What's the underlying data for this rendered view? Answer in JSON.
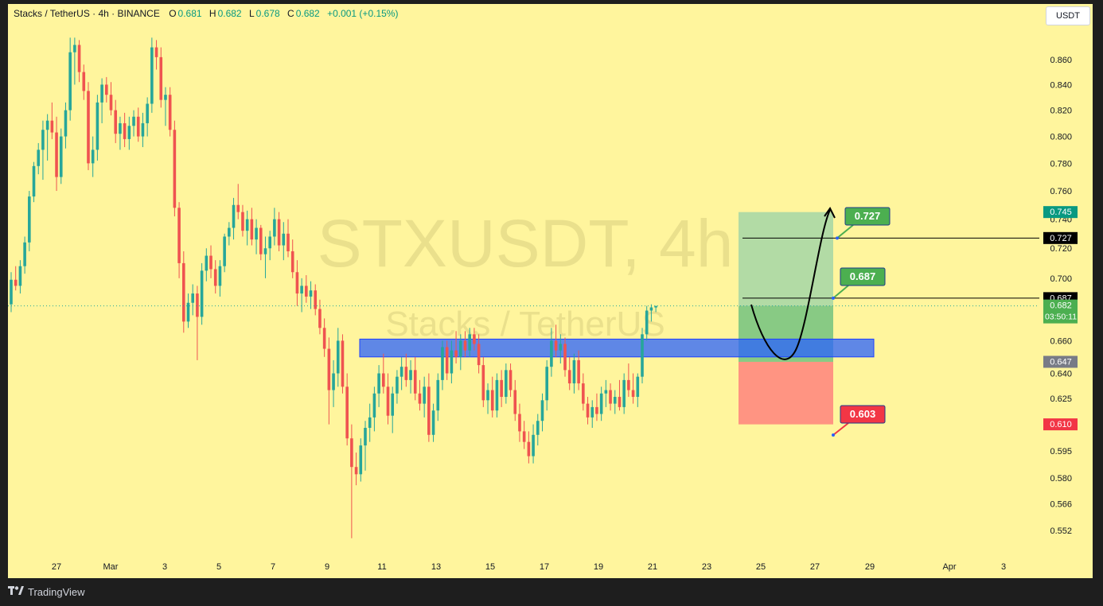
{
  "legend": {
    "symbol": "Stacks / TetherUS · 4h · BINANCE",
    "o_label": "O",
    "o": "0.681",
    "h_label": "H",
    "h": "0.682",
    "l_label": "L",
    "l": "0.678",
    "c_label": "C",
    "c": "0.682",
    "change": "+0.001 (+0.15%)"
  },
  "currency": "USDT",
  "watermark": {
    "main": "STXUSDT, 4h",
    "sub": "Stacks / TetherUS"
  },
  "footer": {
    "brand": "TradingView",
    "logo_icon": "tradingview-logo-icon"
  },
  "colors": {
    "bg": "#fff59d",
    "up": "#26a69a",
    "down": "#ef5350",
    "zone": "#2962ff",
    "target": "#4caf50",
    "stop": "#f23645",
    "profit_fill": "#a5d6a7",
    "loss_fill": "#ff8a80"
  },
  "chart_data": {
    "type": "candlestick",
    "title": "Stacks / TetherUS · 4h · BINANCE",
    "y_ticks": [
      "0.860",
      "0.840",
      "0.820",
      "0.800",
      "0.780",
      "0.760",
      "0.740",
      "0.720",
      "0.700",
      "0.660",
      "0.640",
      "0.625",
      "0.595",
      "0.580",
      "0.566",
      "0.552"
    ],
    "x_ticks": [
      "27",
      "Mar",
      "3",
      "5",
      "7",
      "9",
      "11",
      "13",
      "15",
      "17",
      "19",
      "21",
      "23",
      "25",
      "27",
      "29",
      "Apr",
      "3"
    ],
    "ylim": [
      0.546,
      0.88
    ],
    "y_scale": "log",
    "price_labels": [
      {
        "value": "0.745",
        "color": "#089981"
      },
      {
        "value": "0.727",
        "color": "#000000"
      },
      {
        "value": "0.687",
        "color": "#000000"
      },
      {
        "value": "0.682",
        "sub": "03:50:11",
        "color": "#4caf50"
      },
      {
        "value": "0.647",
        "color": "#787b86"
      },
      {
        "value": "0.610",
        "color": "#f23645"
      }
    ],
    "callouts": [
      {
        "text": "0.727",
        "color": "#4caf50"
      },
      {
        "text": "0.687",
        "color": "#4caf50"
      },
      {
        "text": "0.603",
        "color": "#f23645"
      }
    ],
    "support_zone": {
      "low": 0.65,
      "high": 0.661
    },
    "long_position": {
      "entry": 0.647,
      "target": 0.745,
      "stop": 0.61
    },
    "horizontal_lines": [
      0.727,
      0.687
    ],
    "last_price": 0.682,
    "candles": [
      [
        0.683,
        0.704,
        0.678,
        0.699
      ],
      [
        0.699,
        0.708,
        0.692,
        0.695
      ],
      [
        0.695,
        0.712,
        0.69,
        0.708
      ],
      [
        0.708,
        0.728,
        0.703,
        0.724
      ],
      [
        0.724,
        0.76,
        0.718,
        0.756
      ],
      [
        0.756,
        0.781,
        0.752,
        0.778
      ],
      [
        0.778,
        0.795,
        0.772,
        0.79
      ],
      [
        0.79,
        0.812,
        0.768,
        0.805
      ],
      [
        0.805,
        0.817,
        0.782,
        0.812
      ],
      [
        0.812,
        0.826,
        0.798,
        0.803
      ],
      [
        0.803,
        0.815,
        0.76,
        0.77
      ],
      [
        0.77,
        0.806,
        0.765,
        0.8
      ],
      [
        0.8,
        0.826,
        0.791,
        0.82
      ],
      [
        0.82,
        0.878,
        0.812,
        0.866
      ],
      [
        0.866,
        0.878,
        0.84,
        0.872
      ],
      [
        0.872,
        0.876,
        0.842,
        0.85
      ],
      [
        0.85,
        0.856,
        0.828,
        0.835
      ],
      [
        0.835,
        0.842,
        0.775,
        0.78
      ],
      [
        0.78,
        0.8,
        0.77,
        0.79
      ],
      [
        0.79,
        0.832,
        0.782,
        0.826
      ],
      [
        0.826,
        0.845,
        0.81,
        0.84
      ],
      [
        0.84,
        0.846,
        0.826,
        0.832
      ],
      [
        0.832,
        0.842,
        0.816,
        0.82
      ],
      [
        0.82,
        0.828,
        0.795,
        0.802
      ],
      [
        0.802,
        0.815,
        0.79,
        0.81
      ],
      [
        0.81,
        0.818,
        0.792,
        0.798
      ],
      [
        0.798,
        0.815,
        0.79,
        0.808
      ],
      [
        0.808,
        0.82,
        0.8,
        0.815
      ],
      [
        0.815,
        0.822,
        0.796,
        0.8
      ],
      [
        0.8,
        0.818,
        0.792,
        0.81
      ],
      [
        0.81,
        0.83,
        0.8,
        0.825
      ],
      [
        0.825,
        0.878,
        0.818,
        0.87
      ],
      [
        0.87,
        0.876,
        0.852,
        0.862
      ],
      [
        0.862,
        0.87,
        0.822,
        0.828
      ],
      [
        0.828,
        0.838,
        0.808,
        0.832
      ],
      [
        0.832,
        0.838,
        0.8,
        0.805
      ],
      [
        0.805,
        0.812,
        0.742,
        0.748
      ],
      [
        0.748,
        0.752,
        0.7,
        0.71
      ],
      [
        0.71,
        0.718,
        0.665,
        0.672
      ],
      [
        0.672,
        0.69,
        0.668,
        0.684
      ],
      [
        0.684,
        0.696,
        0.676,
        0.69
      ],
      [
        0.69,
        0.695,
        0.648,
        0.675
      ],
      [
        0.675,
        0.71,
        0.67,
        0.705
      ],
      [
        0.705,
        0.72,
        0.698,
        0.715
      ],
      [
        0.715,
        0.722,
        0.7,
        0.706
      ],
      [
        0.706,
        0.712,
        0.69,
        0.695
      ],
      [
        0.695,
        0.712,
        0.688,
        0.708
      ],
      [
        0.708,
        0.73,
        0.704,
        0.728
      ],
      [
        0.728,
        0.738,
        0.722,
        0.734
      ],
      [
        0.734,
        0.755,
        0.726,
        0.75
      ],
      [
        0.75,
        0.765,
        0.74,
        0.745
      ],
      [
        0.745,
        0.75,
        0.728,
        0.732
      ],
      [
        0.732,
        0.746,
        0.722,
        0.74
      ],
      [
        0.74,
        0.748,
        0.722,
        0.726
      ],
      [
        0.726,
        0.74,
        0.716,
        0.734
      ],
      [
        0.734,
        0.736,
        0.712,
        0.716
      ],
      [
        0.716,
        0.728,
        0.7,
        0.72
      ],
      [
        0.72,
        0.732,
        0.712,
        0.728
      ],
      [
        0.728,
        0.748,
        0.722,
        0.74
      ],
      [
        0.74,
        0.745,
        0.718,
        0.722
      ],
      [
        0.722,
        0.738,
        0.712,
        0.73
      ],
      [
        0.73,
        0.74,
        0.714,
        0.718
      ],
      [
        0.718,
        0.726,
        0.7,
        0.704
      ],
      [
        0.704,
        0.712,
        0.682,
        0.69
      ],
      [
        0.69,
        0.7,
        0.678,
        0.695
      ],
      [
        0.695,
        0.702,
        0.684,
        0.688
      ],
      [
        0.688,
        0.698,
        0.68,
        0.692
      ],
      [
        0.692,
        0.696,
        0.676,
        0.68
      ],
      [
        0.68,
        0.686,
        0.664,
        0.668
      ],
      [
        0.668,
        0.674,
        0.65,
        0.655
      ],
      [
        0.655,
        0.662,
        0.61,
        0.63
      ],
      [
        0.63,
        0.648,
        0.62,
        0.64
      ],
      [
        0.64,
        0.668,
        0.632,
        0.66
      ],
      [
        0.66,
        0.664,
        0.628,
        0.632
      ],
      [
        0.632,
        0.64,
        0.598,
        0.602
      ],
      [
        0.602,
        0.61,
        0.548,
        0.586
      ],
      [
        0.586,
        0.594,
        0.576,
        0.582
      ],
      [
        0.582,
        0.602,
        0.578,
        0.598
      ],
      [
        0.598,
        0.612,
        0.584,
        0.608
      ],
      [
        0.608,
        0.622,
        0.6,
        0.614
      ],
      [
        0.614,
        0.632,
        0.606,
        0.628
      ],
      [
        0.628,
        0.645,
        0.62,
        0.64
      ],
      [
        0.64,
        0.652,
        0.628,
        0.632
      ],
      [
        0.632,
        0.64,
        0.61,
        0.615
      ],
      [
        0.615,
        0.632,
        0.605,
        0.628
      ],
      [
        0.628,
        0.642,
        0.622,
        0.638
      ],
      [
        0.638,
        0.65,
        0.63,
        0.644
      ],
      [
        0.644,
        0.652,
        0.632,
        0.636
      ],
      [
        0.636,
        0.648,
        0.628,
        0.642
      ],
      [
        0.642,
        0.65,
        0.624,
        0.628
      ],
      [
        0.628,
        0.636,
        0.618,
        0.622
      ],
      [
        0.622,
        0.638,
        0.614,
        0.632
      ],
      [
        0.632,
        0.64,
        0.6,
        0.604
      ],
      [
        0.604,
        0.622,
        0.6,
        0.618
      ],
      [
        0.618,
        0.64,
        0.612,
        0.636
      ],
      [
        0.636,
        0.66,
        0.63,
        0.656
      ],
      [
        0.656,
        0.66,
        0.636,
        0.64
      ],
      [
        0.64,
        0.66,
        0.634,
        0.654
      ],
      [
        0.654,
        0.666,
        0.646,
        0.65
      ],
      [
        0.65,
        0.664,
        0.642,
        0.66
      ],
      [
        0.66,
        0.666,
        0.65,
        0.654
      ],
      [
        0.654,
        0.668,
        0.65,
        0.664
      ],
      [
        0.664,
        0.668,
        0.654,
        0.658
      ],
      [
        0.658,
        0.664,
        0.64,
        0.645
      ],
      [
        0.645,
        0.65,
        0.62,
        0.624
      ],
      [
        0.624,
        0.634,
        0.616,
        0.63
      ],
      [
        0.63,
        0.638,
        0.614,
        0.618
      ],
      [
        0.618,
        0.64,
        0.614,
        0.636
      ],
      [
        0.636,
        0.642,
        0.62,
        0.626
      ],
      [
        0.626,
        0.646,
        0.622,
        0.642
      ],
      [
        0.642,
        0.646,
        0.626,
        0.63
      ],
      [
        0.63,
        0.636,
        0.612,
        0.616
      ],
      [
        0.616,
        0.622,
        0.6,
        0.606
      ],
      [
        0.606,
        0.612,
        0.596,
        0.6
      ],
      [
        0.6,
        0.606,
        0.588,
        0.592
      ],
      [
        0.592,
        0.61,
        0.588,
        0.604
      ],
      [
        0.604,
        0.616,
        0.598,
        0.612
      ],
      [
        0.612,
        0.628,
        0.606,
        0.624
      ],
      [
        0.624,
        0.648,
        0.618,
        0.644
      ],
      [
        0.644,
        0.668,
        0.638,
        0.66
      ],
      [
        0.66,
        0.67,
        0.65,
        0.654
      ],
      [
        0.654,
        0.664,
        0.646,
        0.658
      ],
      [
        0.658,
        0.662,
        0.638,
        0.642
      ],
      [
        0.642,
        0.65,
        0.63,
        0.634
      ],
      [
        0.634,
        0.652,
        0.628,
        0.648
      ],
      [
        0.648,
        0.654,
        0.63,
        0.634
      ],
      [
        0.634,
        0.64,
        0.618,
        0.622
      ],
      [
        0.622,
        0.626,
        0.61,
        0.614
      ],
      [
        0.614,
        0.624,
        0.608,
        0.62
      ],
      [
        0.62,
        0.628,
        0.612,
        0.616
      ],
      [
        0.616,
        0.632,
        0.612,
        0.628
      ],
      [
        0.628,
        0.636,
        0.62,
        0.63
      ],
      [
        0.63,
        0.634,
        0.618,
        0.622
      ],
      [
        0.622,
        0.63,
        0.616,
        0.626
      ],
      [
        0.626,
        0.636,
        0.618,
        0.62
      ],
      [
        0.62,
        0.64,
        0.616,
        0.636
      ],
      [
        0.636,
        0.646,
        0.626,
        0.63
      ],
      [
        0.63,
        0.64,
        0.622,
        0.626
      ],
      [
        0.626,
        0.64,
        0.62,
        0.638
      ],
      [
        0.638,
        0.668,
        0.634,
        0.664
      ],
      [
        0.664,
        0.682,
        0.66,
        0.679
      ],
      [
        0.679,
        0.683,
        0.672,
        0.681
      ],
      [
        0.681,
        0.682,
        0.678,
        0.682
      ]
    ],
    "projection": "curved arrow dipping to the support zone then rising to the 0.745 target"
  }
}
